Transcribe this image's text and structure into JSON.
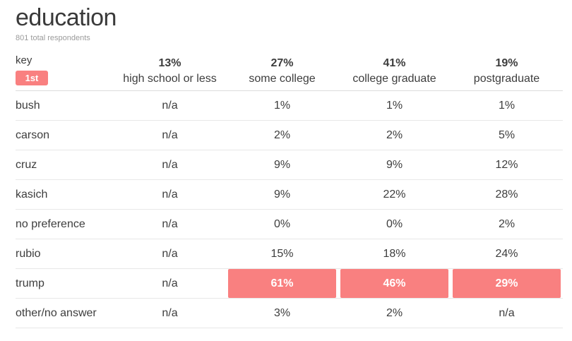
{
  "header": {
    "title": "education",
    "subtitle": "801 total respondents"
  },
  "key": {
    "label": "key",
    "badge": "1st"
  },
  "colors": {
    "highlight": "#f98080",
    "highlight_text": "#ffffff",
    "text": "#3d3d3d",
    "muted_text": "#9b9b9b"
  },
  "chart_data": {
    "type": "table",
    "title": "education",
    "subtitle": "801 total respondents",
    "highlight_meaning": "1st",
    "columns": [
      {
        "pct": "13%",
        "label": "high school or less"
      },
      {
        "pct": "27%",
        "label": "some college"
      },
      {
        "pct": "41%",
        "label": "college graduate"
      },
      {
        "pct": "19%",
        "label": "postgraduate"
      }
    ],
    "rows": [
      {
        "label": "bush",
        "values": [
          "n/a",
          "1%",
          "1%",
          "1%"
        ],
        "highlight": [
          false,
          false,
          false,
          false
        ]
      },
      {
        "label": "carson",
        "values": [
          "n/a",
          "2%",
          "2%",
          "5%"
        ],
        "highlight": [
          false,
          false,
          false,
          false
        ]
      },
      {
        "label": "cruz",
        "values": [
          "n/a",
          "9%",
          "9%",
          "12%"
        ],
        "highlight": [
          false,
          false,
          false,
          false
        ]
      },
      {
        "label": "kasich",
        "values": [
          "n/a",
          "9%",
          "22%",
          "28%"
        ],
        "highlight": [
          false,
          false,
          false,
          false
        ]
      },
      {
        "label": "no preference",
        "values": [
          "n/a",
          "0%",
          "0%",
          "2%"
        ],
        "highlight": [
          false,
          false,
          false,
          false
        ]
      },
      {
        "label": "rubio",
        "values": [
          "n/a",
          "15%",
          "18%",
          "24%"
        ],
        "highlight": [
          false,
          false,
          false,
          false
        ]
      },
      {
        "label": "trump",
        "values": [
          "n/a",
          "61%",
          "46%",
          "29%"
        ],
        "highlight": [
          false,
          true,
          true,
          true
        ]
      },
      {
        "label": "other/no answer",
        "values": [
          "n/a",
          "3%",
          "2%",
          "n/a"
        ],
        "highlight": [
          false,
          false,
          false,
          false
        ]
      }
    ]
  }
}
